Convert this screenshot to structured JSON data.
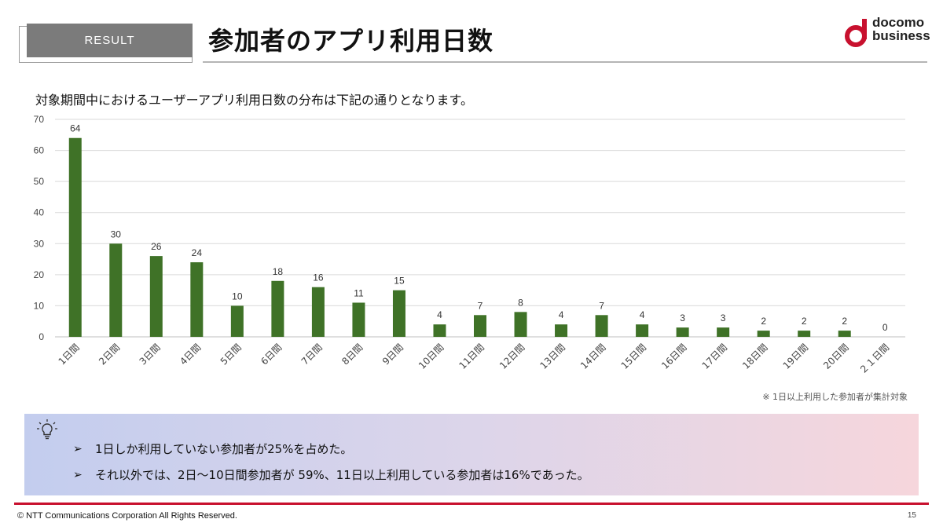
{
  "header": {
    "badge": "RESULT",
    "title": "参加者のアプリ利用日数",
    "logo_line1": "docomo",
    "logo_line2": "business"
  },
  "lead_text": "対象期間中におけるユーザーアプリ利用日数の分布は下記の通りとなります。",
  "chart_data": {
    "type": "bar",
    "categories": [
      "1日間",
      "2日間",
      "3日間",
      "4日間",
      "5日間",
      "6日間",
      "7日間",
      "8日間",
      "9日間",
      "10日間",
      "11日間",
      "12日間",
      "13日間",
      "14日間",
      "15日間",
      "16日間",
      "17日間",
      "18日間",
      "19日間",
      "20日間",
      "２１日間"
    ],
    "values": [
      64,
      30,
      26,
      24,
      10,
      18,
      16,
      11,
      15,
      4,
      7,
      8,
      4,
      7,
      4,
      3,
      3,
      2,
      2,
      2,
      0
    ],
    "ylim": [
      0,
      70
    ],
    "yticks": [
      0,
      10,
      20,
      30,
      40,
      50,
      60,
      70
    ],
    "grid": true,
    "legend": "none",
    "bar_color": "#3f7227",
    "title": "",
    "xlabel": "",
    "ylabel": ""
  },
  "note": "※ 1日以上利用した参加者が集計対象",
  "summary": {
    "bullet_glyph": "➢",
    "items": [
      "1日しか利用していない参加者が25%を占めた。",
      "それ以外では、2日～10日間参加者が 59%、11日以上利用している参加者は16%であった。"
    ]
  },
  "footer": {
    "copyright": "© NTT Communications Corporation All Rights Reserved.",
    "page_number": "15"
  },
  "colors": {
    "accent_red": "#c8102e",
    "badge_gray": "#7b7b7b"
  }
}
